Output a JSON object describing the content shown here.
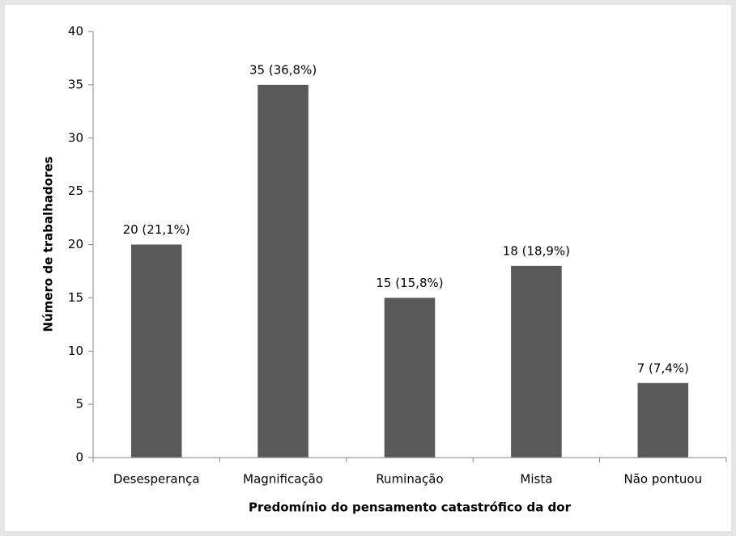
{
  "chart_data": {
    "type": "bar",
    "xlabel": "Predomínio do pensamento catastrófico da dor",
    "ylabel": "Número de trabalhadores",
    "categories": [
      "Desesperança",
      "Magnificação",
      "Ruminação",
      "Mista",
      "Não pontuou"
    ],
    "values": [
      20,
      35,
      15,
      18,
      7
    ],
    "value_labels": [
      "20 (21,1%)",
      "35 (36,8%)",
      "15 (15,8%)",
      "18 (18,9%)",
      "7 (7,4%)"
    ],
    "color": "#595959",
    "ylim": [
      0,
      40
    ],
    "yticks": [
      0,
      5,
      10,
      15,
      20,
      25,
      30,
      35,
      40
    ],
    "grid": false
  }
}
